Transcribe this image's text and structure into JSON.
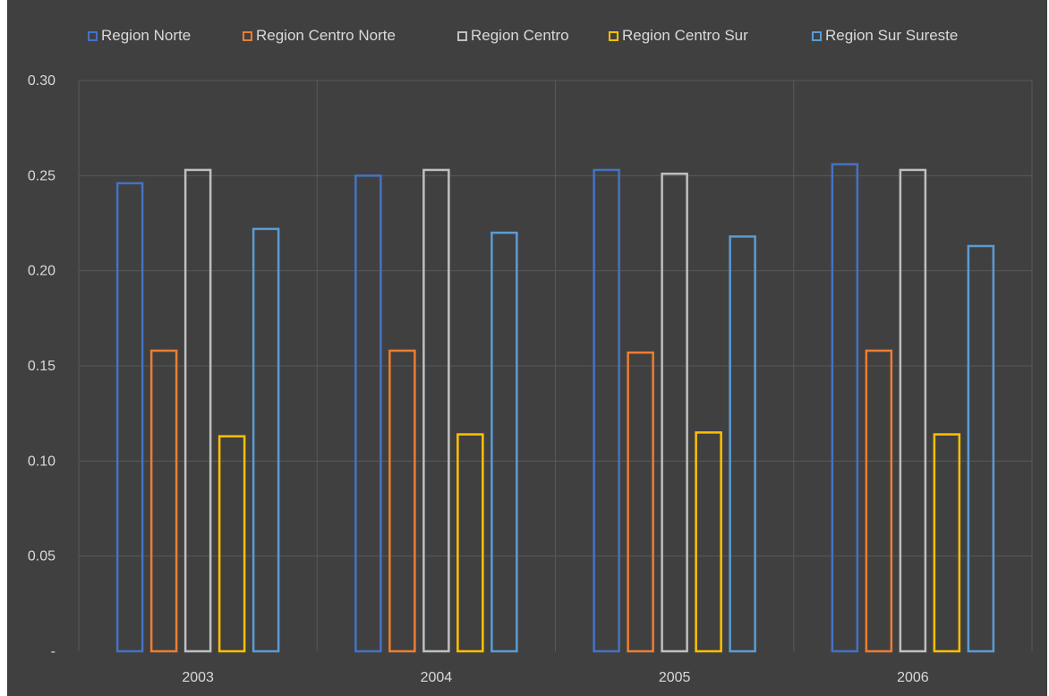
{
  "chart_data": {
    "type": "bar",
    "categories": [
      "2003",
      "2004",
      "2005",
      "2006"
    ],
    "series": [
      {
        "name": "Region Norte",
        "color": "#4472c4",
        "values": [
          0.246,
          0.25,
          0.253,
          0.256
        ]
      },
      {
        "name": "Region Centro Norte",
        "color": "#ed7d31",
        "values": [
          0.158,
          0.158,
          0.157,
          0.158
        ]
      },
      {
        "name": "Region Centro",
        "color": "#bfbfbf",
        "values": [
          0.253,
          0.253,
          0.251,
          0.253
        ]
      },
      {
        "name": "Region Centro Sur",
        "color": "#ffc000",
        "values": [
          0.113,
          0.114,
          0.115,
          0.114
        ]
      },
      {
        "name": "Region Sur Sureste",
        "color": "#5b9bd5",
        "values": [
          0.222,
          0.22,
          0.218,
          0.213
        ]
      }
    ],
    "y_ticks": [
      "-",
      "0.05",
      "0.10",
      "0.15",
      "0.20",
      "0.25",
      "0.30"
    ],
    "ylim": [
      0,
      0.3
    ],
    "grid": true,
    "legend_position": "top",
    "title": "",
    "xlabel": "",
    "ylabel": ""
  },
  "colors": {
    "background": "#404040",
    "gridline": "#595959",
    "text": "#d9d9d9"
  }
}
